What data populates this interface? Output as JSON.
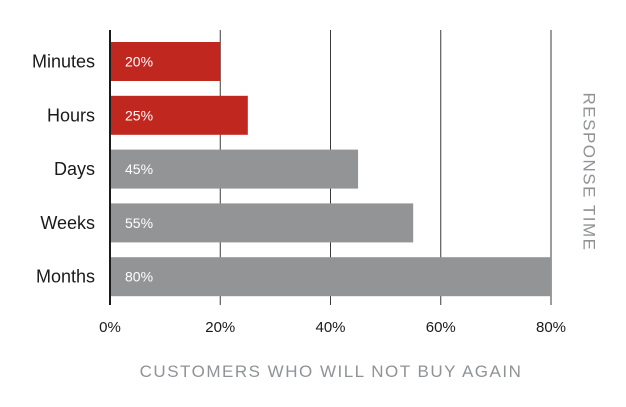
{
  "chart_data": {
    "type": "bar",
    "orientation": "horizontal",
    "categories": [
      "Minutes",
      "Hours",
      "Days",
      "Weeks",
      "Months"
    ],
    "values": [
      20,
      25,
      45,
      55,
      80
    ],
    "data_labels": [
      "20%",
      "25%",
      "45%",
      "55%",
      "80%"
    ],
    "bar_colors": [
      "#c0271e",
      "#c0271e",
      "#939496",
      "#939496",
      "#939496"
    ],
    "xlim": [
      0,
      80
    ],
    "xticks": [
      0,
      20,
      40,
      60,
      80
    ],
    "xtick_labels": [
      "0%",
      "20%",
      "40%",
      "60%",
      "80%"
    ],
    "xlabel": "CUSTOMERS WHO WILL NOT BUY AGAIN",
    "ylabel": "RESPONSE TIME",
    "grid": "vertical",
    "legend": "none"
  }
}
